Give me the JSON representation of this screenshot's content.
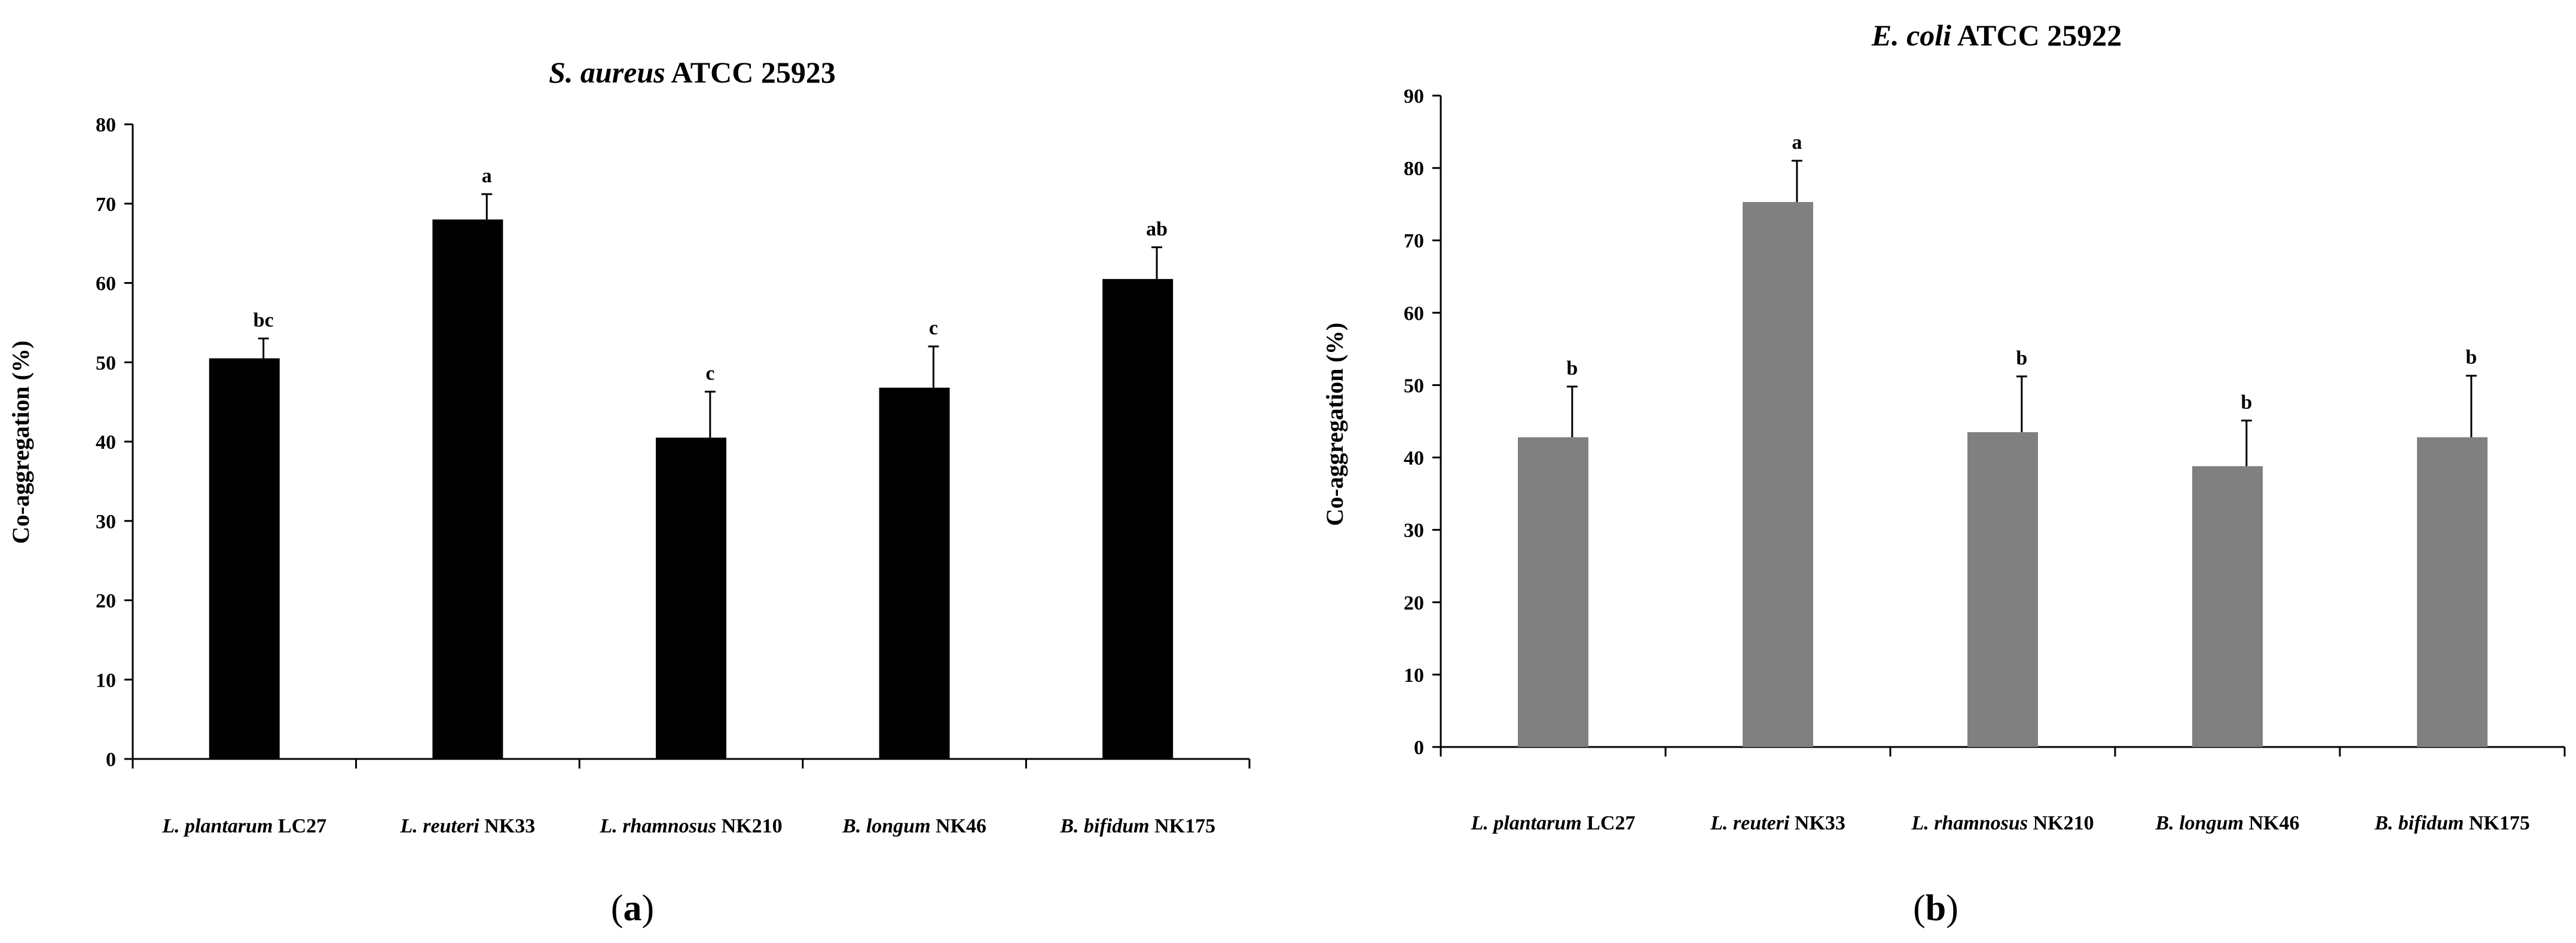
{
  "chart_data": [
    {
      "type": "bar",
      "panel_label": "a",
      "title_species": "S. aureus",
      "title_strain": " ATCC 25923",
      "ylabel": "Co-aggregation (%)",
      "xlabel": "",
      "ylim": [
        0,
        80
      ],
      "yticks": [
        0,
        10,
        20,
        30,
        40,
        50,
        60,
        70,
        80
      ],
      "bar_color": "#000000",
      "categories": [
        {
          "species": "L. plantarum",
          "strain": " LC27"
        },
        {
          "species": "L. reuteri",
          "strain": " NK33"
        },
        {
          "species": "L. rhamnosus",
          "strain": " NK210"
        },
        {
          "species": "B. longum",
          "strain": " NK46"
        },
        {
          "species": "B. bifidum",
          "strain": " NK175"
        }
      ],
      "values": [
        50.5,
        68,
        40.5,
        46.8,
        60.5
      ],
      "errors": [
        2.5,
        3.2,
        5.8,
        5.2,
        4.0
      ],
      "letters": [
        "bc",
        "a",
        "c",
        "c",
        "ab"
      ]
    },
    {
      "type": "bar",
      "panel_label": "b",
      "title_species": "E. coli",
      "title_strain": " ATCC 25922",
      "ylabel": "Co-aggregation (%)",
      "xlabel": "",
      "ylim": [
        0,
        90
      ],
      "yticks": [
        0,
        10,
        20,
        30,
        40,
        50,
        60,
        70,
        80,
        90
      ],
      "bar_color": "#808080",
      "categories": [
        {
          "species": "L. plantarum",
          "strain": " LC27"
        },
        {
          "species": "L. reuteri",
          "strain": " NK33"
        },
        {
          "species": "L. rhamnosus",
          "strain": " NK210"
        },
        {
          "species": "B. longum",
          "strain": " NK46"
        },
        {
          "species": "B. bifidum",
          "strain": " NK175"
        }
      ],
      "values": [
        42.8,
        75.3,
        43.5,
        38.8,
        42.8
      ],
      "errors": [
        7.0,
        5.7,
        7.7,
        6.3,
        8.5
      ],
      "letters": [
        "b",
        "a",
        "b",
        "b",
        "b"
      ]
    }
  ]
}
